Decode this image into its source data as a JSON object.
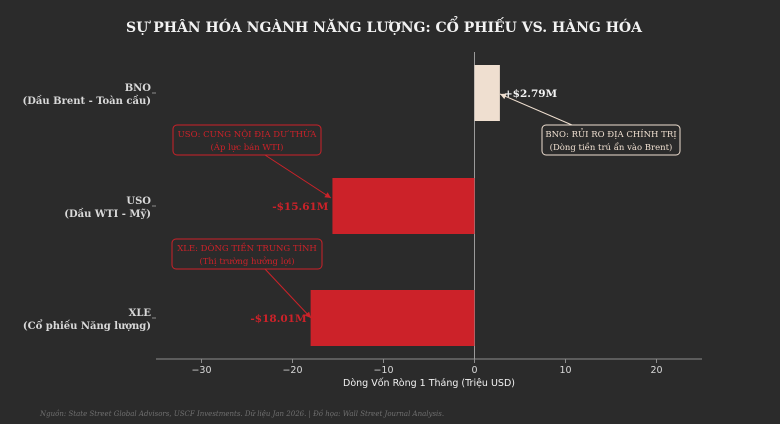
{
  "chart_data": {
    "type": "bar",
    "orientation": "horizontal",
    "title": "SỰ PHÂN HÓA NGÀNH NĂNG LƯỢNG: CỔ PHIẾU VS. HÀNG HÓA",
    "xlabel": "Dòng Vốn Ròng 1 Tháng (Triệu USD)",
    "ylabel": "",
    "xlim": [
      -35,
      25
    ],
    "xticks": [
      -30,
      -20,
      -10,
      0,
      10,
      20
    ],
    "xtick_labels": [
      "−30",
      "−20",
      "−10",
      "0",
      "10",
      "20"
    ],
    "grid": false,
    "categories": [
      {
        "line1": "BNO",
        "line2": "(Dầu Brent - Toàn cầu)"
      },
      {
        "line1": "USO",
        "line2": "(Dầu WTI - Mỹ)"
      },
      {
        "line1": "XLE",
        "line2": "(Cổ phiếu Năng lượng)"
      }
    ],
    "values": [
      2.79,
      -15.61,
      -18.01
    ],
    "value_labels": [
      "+$2.79M",
      "-$15.61M",
      "-$18.01M"
    ],
    "bar_colors": [
      "#efdfd0",
      "#cc2229",
      "#cc2229"
    ],
    "annotations": [
      {
        "line1": "BNO: RỦI RO ĐỊA CHÍNH TRỊ",
        "line2": "(Dòng tiền trú ẩn vào Brent)",
        "color": "#efdfd0"
      },
      {
        "line1": "USO: CUNG NỘI ĐỊA DƯ THỪA",
        "line2": "(Áp lực bán WTI)",
        "color": "#cc2229"
      },
      {
        "line1": "XLE: DÒNG TIỀN TRUNG TÍNH",
        "line2": "(Thị trường hưởng lợi)",
        "color": "#cc2229"
      }
    ]
  },
  "footer": {
    "source": "Nguồn: State Street Global Advisors, USCF Investments. Dữ liệu Jan 2026. | Đồ họa: Wall Street Journal Analysis."
  },
  "colors": {
    "background": "#2b2b2b",
    "text": "#d9d9d9",
    "title": "#f2f2f2",
    "axis": "#8c8c8c",
    "footer": "#707070"
  }
}
